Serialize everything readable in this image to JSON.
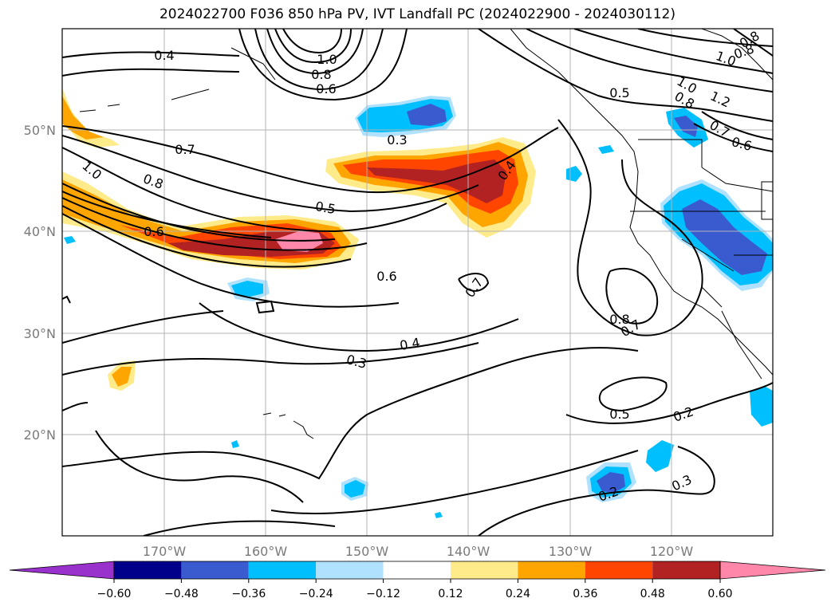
{
  "title": "2024022700 F036 850 hPa PV, IVT Landfall PC (2024022900 - 2024030112)",
  "lat_labels": [
    "50°N",
    "40°N",
    "30°N",
    "20°N"
  ],
  "lon_labels": [
    "170°W",
    "160°W",
    "150°W",
    "140°W",
    "130°W",
    "120°W"
  ],
  "colorbar": {
    "tick_labels": [
      "−0.60",
      "−0.48",
      "−0.36",
      "−0.24",
      "−0.12",
      "0.12",
      "0.24",
      "0.36",
      "0.48",
      "0.60"
    ],
    "colors": [
      "#9932cc",
      "#00008b",
      "#3a5bd0",
      "#00bfff",
      "#b0e2ff",
      "#ffffff",
      "#ffeb8a",
      "#ffa500",
      "#ff4500",
      "#b22222",
      "#ff88aa"
    ]
  },
  "contour_labels": [
    "0.4",
    "1.0",
    "0.8",
    "0.6",
    "0.3",
    "0.7",
    "1.0",
    "0.8",
    "0.5",
    "0.6",
    "0.4",
    "0.6",
    "0.7",
    "0.4",
    "0.3",
    "0.8",
    "0.7",
    "0.5",
    "0.2",
    "0.2",
    "0.3",
    "0.5",
    "1.0",
    "0.8",
    "1.2",
    "1.0",
    "0.8",
    "0.6",
    "0.8",
    "0.7"
  ]
}
